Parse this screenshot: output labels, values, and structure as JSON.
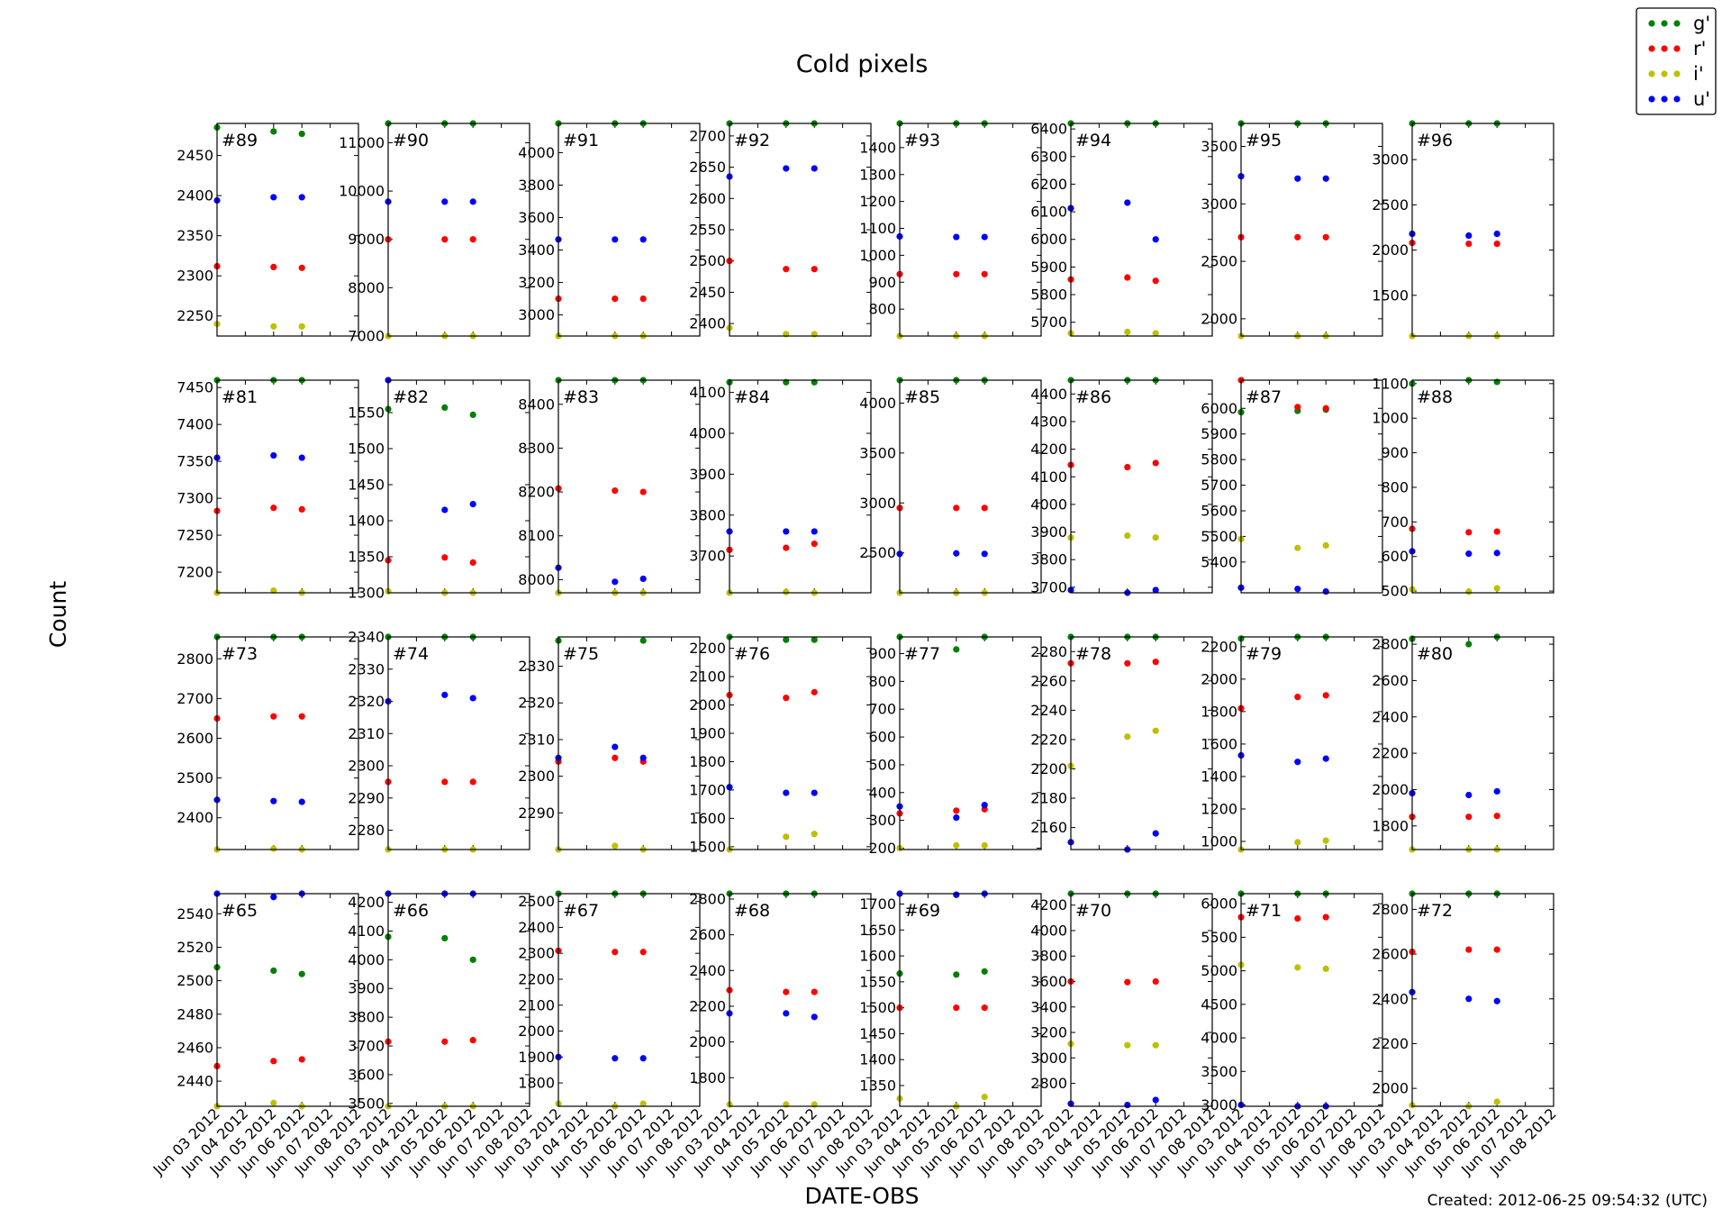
{
  "figure": {
    "title": "Cold pixels",
    "xlabel": "DATE-OBS",
    "ylabel": "Count",
    "created": "Created: 2012-06-25 09:54:32 (UTC)"
  },
  "legend": [
    {
      "name": "g'",
      "color": "#008000"
    },
    {
      "name": "r'",
      "color": "#ff0000"
    },
    {
      "name": "i'",
      "color": "#bfbf00"
    },
    {
      "name": "u'",
      "color": "#0000ff"
    }
  ],
  "chart_data": {
    "type": "scatter",
    "layout": "grid 4 rows x 8 columns",
    "x_dates": [
      "2012-06-03",
      "2012-06-05",
      "2012-06-06"
    ],
    "x_ticks": [
      "Jun 03 2012",
      "Jun 04 2012",
      "Jun 05 2012",
      "Jun 06 2012",
      "Jun 07 2012",
      "Jun 08 2012"
    ],
    "panels": [
      {
        "label": "#89",
        "ylim": [
          2225,
          2490
        ],
        "yticks": [
          2250,
          2300,
          2350,
          2400,
          2450
        ],
        "series": {
          "g'": [
            2485,
            2480,
            2477
          ],
          "r'": [
            2312,
            2311,
            2310
          ],
          "i'": [
            2240,
            2237,
            2237
          ],
          "u'": [
            2394,
            2398,
            2398
          ]
        }
      },
      {
        "label": "#90",
        "ylim": [
          7000,
          11400
        ],
        "yticks": [
          7000,
          8000,
          9000,
          10000,
          11000
        ],
        "series": {
          "g'": [
            11400,
            11400,
            11400
          ],
          "r'": [
            9000,
            9000,
            9000
          ],
          "i'": [
            7000,
            7000,
            7000
          ],
          "u'": [
            9780,
            9780,
            9780
          ]
        }
      },
      {
        "label": "#91",
        "ylim": [
          2870,
          4180
        ],
        "yticks": [
          3000,
          3200,
          3400,
          3600,
          3800,
          4000
        ],
        "series": {
          "g'": [
            4180,
            4180,
            4180
          ],
          "r'": [
            3100,
            3100,
            3100
          ],
          "i'": [
            2870,
            2870,
            2870
          ],
          "u'": [
            3465,
            3465,
            3465
          ]
        }
      },
      {
        "label": "#92",
        "ylim": [
          2380,
          2720
        ],
        "yticks": [
          2400,
          2450,
          2500,
          2550,
          2600,
          2650,
          2700
        ],
        "series": {
          "g'": [
            2720,
            2720,
            2720
          ],
          "r'": [
            2500,
            2487,
            2487
          ],
          "i'": [
            2393,
            2383,
            2383
          ],
          "u'": [
            2635,
            2648,
            2648
          ]
        }
      },
      {
        "label": "#93",
        "ylim": [
          700,
          1490
        ],
        "yticks": [
          800,
          900,
          1000,
          1100,
          1200,
          1300,
          1400
        ],
        "series": {
          "g'": [
            1490,
            1490,
            1490
          ],
          "r'": [
            930,
            930,
            930
          ],
          "i'": [
            700,
            700,
            700
          ],
          "u'": [
            1070,
            1068,
            1068
          ]
        }
      },
      {
        "label": "#94",
        "ylim": [
          5650,
          6420
        ],
        "yticks": [
          5700,
          5800,
          5900,
          6000,
          6100,
          6200,
          6300,
          6400
        ],
        "series": {
          "g'": [
            6420,
            6420,
            6420
          ],
          "r'": [
            5855,
            5862,
            5850
          ],
          "i'": [
            5660,
            5665,
            5660
          ],
          "u'": [
            6113,
            6133,
            6000
          ]
        }
      },
      {
        "label": "#95",
        "ylim": [
          1850,
          3700
        ],
        "yticks": [
          2000,
          2500,
          3000,
          3500
        ],
        "series": {
          "g'": [
            3700,
            3700,
            3700
          ],
          "r'": [
            2710,
            2710,
            2710
          ],
          "i'": [
            1850,
            1850,
            1850
          ],
          "u'": [
            3240,
            3220,
            3220
          ]
        }
      },
      {
        "label": "#96",
        "ylim": [
          1050,
          3400
        ],
        "yticks": [
          1500,
          2000,
          2500,
          3000
        ],
        "series": {
          "g'": [
            3400,
            3400,
            3400
          ],
          "r'": [
            2080,
            2070,
            2070
          ],
          "i'": [
            1050,
            1050,
            1050
          ],
          "u'": [
            2180,
            2160,
            2180
          ]
        }
      },
      {
        "label": "#81",
        "ylim": [
          7172,
          7460
        ],
        "yticks": [
          7200,
          7250,
          7300,
          7350,
          7400,
          7450
        ],
        "series": {
          "g'": [
            7460,
            7460,
            7460
          ],
          "r'": [
            7283,
            7287,
            7285
          ],
          "i'": [
            7172,
            7175,
            7172
          ],
          "u'": [
            7355,
            7358,
            7355
          ]
        }
      },
      {
        "label": "#82",
        "ylim": [
          1300,
          1595
        ],
        "yticks": [
          1300,
          1350,
          1400,
          1450,
          1500,
          1550
        ],
        "series": {
          "g'": [
            1555,
            1557,
            1547
          ],
          "r'": [
            1345,
            1349,
            1342
          ],
          "i'": [
            1302,
            1300,
            1300
          ],
          "u'": [
            1595,
            1415,
            1423
          ]
        }
      },
      {
        "label": "#83",
        "ylim": [
          7970,
          8455
        ],
        "yticks": [
          8000,
          8100,
          8200,
          8300,
          8400
        ],
        "series": {
          "g'": [
            8455,
            8455,
            8455
          ],
          "r'": [
            8208,
            8203,
            8200
          ],
          "i'": [
            7970,
            7970,
            7970
          ],
          "u'": [
            8027,
            7995,
            8002
          ]
        }
      },
      {
        "label": "#84",
        "ylim": [
          3610,
          4130
        ],
        "yticks": [
          3700,
          3800,
          3900,
          4000,
          4100
        ],
        "series": {
          "g'": [
            4125,
            4125,
            4125
          ],
          "r'": [
            3715,
            3720,
            3730
          ],
          "i'": [
            3610,
            3612,
            3610
          ],
          "u'": [
            3760,
            3760,
            3760
          ]
        }
      },
      {
        "label": "#85",
        "ylim": [
          2100,
          4230
        ],
        "yticks": [
          2500,
          3000,
          3500,
          4000
        ],
        "series": {
          "g'": [
            4230,
            4230,
            4230
          ],
          "r'": [
            2950,
            2950,
            2950
          ],
          "i'": [
            2100,
            2100,
            2100
          ],
          "u'": [
            2490,
            2495,
            2490
          ]
        }
      },
      {
        "label": "#86",
        "ylim": [
          3680,
          4450
        ],
        "yticks": [
          3700,
          3800,
          3900,
          4000,
          4100,
          4200,
          4300,
          4400
        ],
        "series": {
          "g'": [
            4450,
            4450,
            4450
          ],
          "r'": [
            4143,
            4135,
            4150
          ],
          "i'": [
            3880,
            3887,
            3880
          ],
          "u'": [
            3690,
            3680,
            3690
          ]
        }
      },
      {
        "label": "#87",
        "ylim": [
          5280,
          6110
        ],
        "yticks": [
          5400,
          5500,
          5600,
          5700,
          5800,
          5900,
          6000
        ],
        "series": {
          "g'": [
            5985,
            5990,
            5995
          ],
          "r'": [
            6110,
            6005,
            6000
          ],
          "i'": [
            5490,
            5455,
            5465
          ],
          "u'": [
            5300,
            5295,
            5285
          ]
        }
      },
      {
        "label": "#88",
        "ylim": [
          495,
          1110
        ],
        "yticks": [
          500,
          600,
          700,
          800,
          900,
          1000,
          1100
        ],
        "series": {
          "g'": [
            1100,
            1110,
            1105
          ],
          "r'": [
            680,
            670,
            672
          ],
          "i'": [
            505,
            498,
            508
          ],
          "u'": [
            615,
            608,
            610
          ]
        }
      },
      {
        "label": "#73",
        "ylim": [
          2320,
          2855
        ],
        "yticks": [
          2400,
          2500,
          2600,
          2700,
          2800
        ],
        "series": {
          "g'": [
            2855,
            2855,
            2855
          ],
          "r'": [
            2650,
            2655,
            2655
          ],
          "i'": [
            2320,
            2322,
            2320
          ],
          "u'": [
            2445,
            2442,
            2440
          ]
        }
      },
      {
        "label": "#74",
        "ylim": [
          2274,
          2340
        ],
        "yticks": [
          2280,
          2290,
          2300,
          2310,
          2320,
          2330,
          2340
        ],
        "series": {
          "g'": [
            2340,
            2340,
            2340
          ],
          "r'": [
            2295,
            2295,
            2295
          ],
          "i'": [
            2274,
            2274,
            2274
          ],
          "u'": [
            2320,
            2322,
            2321
          ]
        }
      },
      {
        "label": "#75",
        "ylim": [
          2280,
          2338
        ],
        "yticks": [
          2290,
          2300,
          2310,
          2320,
          2330
        ],
        "series": {
          "g'": [
            2337,
            2340,
            2337
          ],
          "r'": [
            2304,
            2305,
            2304
          ],
          "i'": [
            2280,
            2281,
            2280
          ],
          "u'": [
            2305,
            2308,
            2305
          ]
        }
      },
      {
        "label": "#76",
        "ylim": [
          1490,
          2240
        ],
        "yticks": [
          1500,
          1600,
          1700,
          1800,
          1900,
          2000,
          2100,
          2200
        ],
        "series": {
          "g'": [
            2240,
            2230,
            2230
          ],
          "r'": [
            2035,
            2025,
            2045
          ],
          "i'": [
            1490,
            1535,
            1545
          ],
          "u'": [
            1710,
            1690,
            1690
          ]
        }
      },
      {
        "label": "#77",
        "ylim": [
          195,
          960
        ],
        "yticks": [
          200,
          300,
          400,
          500,
          600,
          700,
          800,
          900
        ],
        "series": {
          "g'": [
            960,
            915,
            960
          ],
          "r'": [
            325,
            335,
            340
          ],
          "i'": [
            200,
            210,
            210
          ],
          "u'": [
            350,
            310,
            355
          ]
        }
      },
      {
        "label": "#78",
        "ylim": [
          2145,
          2290
        ],
        "yticks": [
          2160,
          2180,
          2200,
          2220,
          2240,
          2260,
          2280
        ],
        "series": {
          "g'": [
            2290,
            2290,
            2290
          ],
          "r'": [
            2272,
            2272,
            2273
          ],
          "i'": [
            2202,
            2222,
            2226
          ],
          "u'": [
            2150,
            2145,
            2156
          ]
        }
      },
      {
        "label": "#79",
        "ylim": [
          950,
          2260
        ],
        "yticks": [
          1000,
          1200,
          1400,
          1600,
          1800,
          2000,
          2200
        ],
        "series": {
          "g'": [
            2250,
            2260,
            2260
          ],
          "r'": [
            1820,
            1890,
            1900
          ],
          "i'": [
            950,
            995,
            1005
          ],
          "u'": [
            1530,
            1490,
            1510
          ]
        }
      },
      {
        "label": "#80",
        "ylim": [
          1670,
          2840
        ],
        "yticks": [
          1800,
          2000,
          2200,
          2400,
          2600,
          2800
        ],
        "series": {
          "g'": [
            2830,
            2800,
            2840
          ],
          "r'": [
            1850,
            1850,
            1855
          ],
          "i'": [
            1670,
            1670,
            1670
          ],
          "u'": [
            1980,
            1970,
            1990
          ]
        }
      },
      {
        "label": "#65",
        "ylim": [
          2425,
          2552
        ],
        "yticks": [
          2440,
          2460,
          2480,
          2500,
          2520,
          2540
        ],
        "series": {
          "g'": [
            2508,
            2506,
            2504
          ],
          "r'": [
            2449,
            2452,
            2453
          ],
          "i'": [
            2425,
            2427,
            2425
          ],
          "u'": [
            2552,
            2550,
            2552
          ]
        }
      },
      {
        "label": "#66",
        "ylim": [
          3490,
          4230
        ],
        "yticks": [
          3500,
          3600,
          3700,
          3800,
          3900,
          4000,
          4100,
          4200
        ],
        "series": {
          "g'": [
            4080,
            4075,
            4000
          ],
          "r'": [
            3715,
            3715,
            3720
          ],
          "i'": [
            3490,
            3490,
            3490
          ],
          "u'": [
            4230,
            4230,
            4230
          ]
        }
      },
      {
        "label": "#67",
        "ylim": [
          1710,
          2530
        ],
        "yticks": [
          1800,
          1900,
          2000,
          2100,
          2200,
          2300,
          2400,
          2500
        ],
        "series": {
          "g'": [
            2530,
            2530,
            2530
          ],
          "r'": [
            2310,
            2305,
            2305
          ],
          "i'": [
            1720,
            1710,
            1720
          ],
          "u'": [
            1900,
            1895,
            1895
          ]
        }
      },
      {
        "label": "#68",
        "ylim": [
          1640,
          2830
        ],
        "yticks": [
          1800,
          2000,
          2200,
          2400,
          2600,
          2800
        ],
        "series": {
          "g'": [
            2830,
            2830,
            2830
          ],
          "r'": [
            2290,
            2280,
            2280
          ],
          "i'": [
            1650,
            1650,
            1650
          ],
          "u'": [
            2160,
            2160,
            2140
          ]
        }
      },
      {
        "label": "#69",
        "ylim": [
          1310,
          1720
        ],
        "yticks": [
          1350,
          1400,
          1450,
          1500,
          1550,
          1600,
          1650,
          1700
        ],
        "series": {
          "g'": [
            1566,
            1564,
            1570
          ],
          "r'": [
            1500,
            1500,
            1500
          ],
          "i'": [
            1325,
            1310,
            1328
          ],
          "u'": [
            1720,
            1718,
            1720
          ]
        }
      },
      {
        "label": "#70",
        "ylim": [
          2620,
          4290
        ],
        "yticks": [
          2800,
          3000,
          3200,
          3400,
          3600,
          3800,
          4000,
          4200
        ],
        "series": {
          "g'": [
            4290,
            4290,
            4290
          ],
          "r'": [
            3600,
            3595,
            3600
          ],
          "i'": [
            3110,
            3100,
            3100
          ],
          "u'": [
            2640,
            2630,
            2670
          ]
        }
      },
      {
        "label": "#71",
        "ylim": [
          2980,
          6150
        ],
        "yticks": [
          3000,
          3500,
          4000,
          4500,
          5000,
          5500,
          6000
        ],
        "series": {
          "g'": [
            6150,
            6150,
            6150
          ],
          "r'": [
            5800,
            5780,
            5800
          ],
          "i'": [
            5090,
            5050,
            5030
          ],
          "u'": [
            3000,
            2980,
            2980
          ]
        }
      },
      {
        "label": "#72",
        "ylim": [
          1920,
          2870
        ],
        "yticks": [
          2000,
          2200,
          2400,
          2600,
          2800
        ],
        "series": {
          "g'": [
            2870,
            2870,
            2870
          ],
          "r'": [
            2610,
            2620,
            2620
          ],
          "i'": [
            1925,
            1920,
            1940
          ],
          "u'": [
            2430,
            2400,
            2390
          ]
        }
      }
    ]
  }
}
